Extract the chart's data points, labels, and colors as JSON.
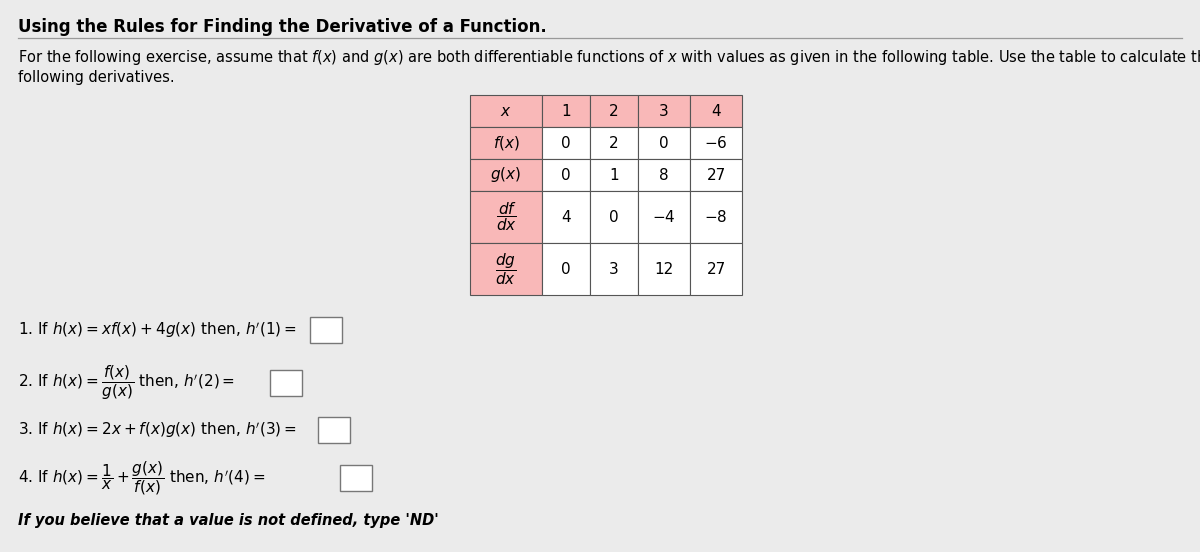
{
  "title": "Using the Rules for Finding the Derivative of a Function.",
  "bg_color": "#ebebeb",
  "text_color": "#000000",
  "pink": "#f9b8b8",
  "white": "#ffffff",
  "border_color": "#555555",
  "table": {
    "col_labels": [
      "$x$",
      "1",
      "2",
      "3",
      "4"
    ],
    "rows": [
      [
        "$f(x)$",
        "0",
        "2",
        "0",
        "$-6$"
      ],
      [
        "$g(x)$",
        "0",
        "1",
        "8",
        "27"
      ],
      [
        "$\\dfrac{df}{dx}$",
        "4",
        "0",
        "$-4$",
        "$-8$"
      ],
      [
        "$\\dfrac{dg}{dx}$",
        "0",
        "3",
        "12",
        "27"
      ]
    ]
  },
  "q1": "1. If $h(x) = xf(x) + 4g(x)$ then, $h'(1) =$",
  "q2_pre": "2. If $h(x) = $",
  "q2_frac": "$\\dfrac{f(x)}{g(x)}$",
  "q2_post": "$ $ then, $h'(2) =$",
  "q3": "3. If $h(x) = 2x + f(x)g(x)$ then, $h'(3) =$",
  "q4_pre": "4. If $h(x) = $",
  "q4_frac": "$\\dfrac{1}{x} + \\dfrac{g(x)}{f(x)}$",
  "q4_post": "$ $ then, $h'(4) =$",
  "footer": "If you believe that a value is not defined, type 'ND'"
}
